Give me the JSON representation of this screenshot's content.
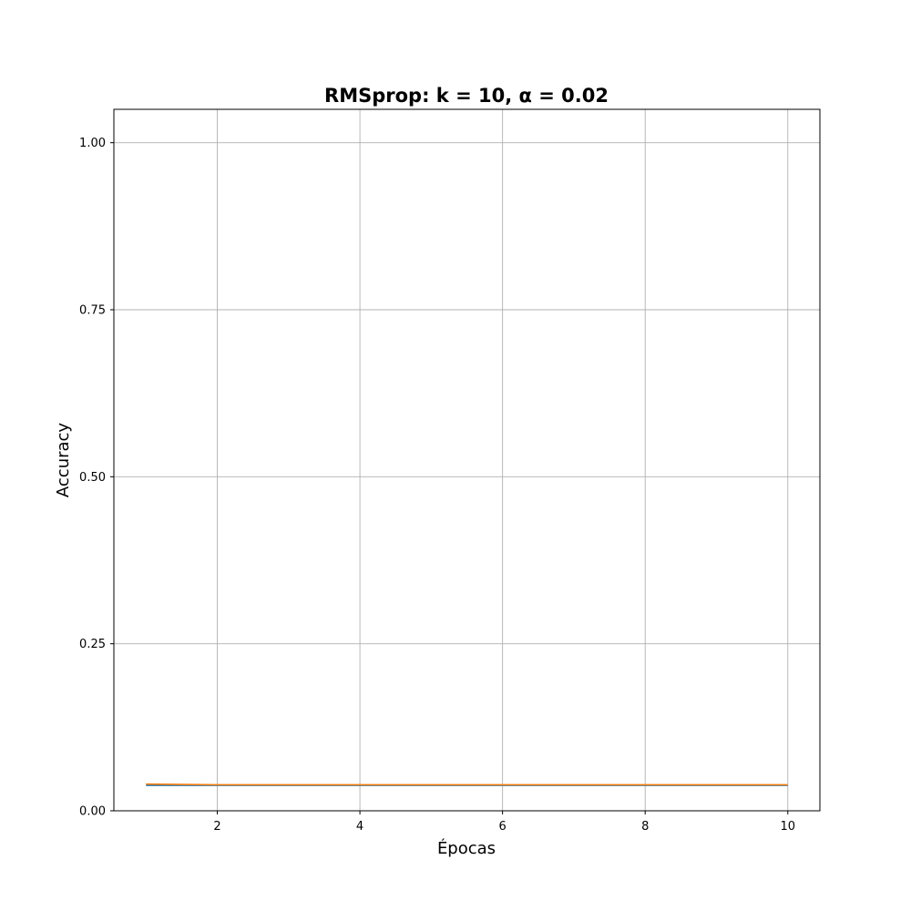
{
  "chart_data": {
    "type": "line",
    "title": "RMSprop: k = 10, α = 0.02",
    "xlabel": "Épocas",
    "ylabel": "Accuracy",
    "xlim": [
      0.55,
      10.45
    ],
    "ylim": [
      0,
      1.05
    ],
    "xticks": [
      2,
      4,
      6,
      8,
      10
    ],
    "xtick_labels": [
      "2",
      "4",
      "6",
      "8",
      "10"
    ],
    "yticks": [
      0,
      0.25,
      0.5,
      0.75,
      1.0
    ],
    "ytick_labels": [
      "0.00",
      "0.25",
      "0.50",
      "0.75",
      "1.00"
    ],
    "grid": true,
    "x": [
      1,
      2,
      3,
      4,
      5,
      6,
      7,
      8,
      9,
      10
    ],
    "series": [
      {
        "color": "#1f77b4",
        "values": [
          0.038,
          0.038,
          0.038,
          0.038,
          0.038,
          0.038,
          0.038,
          0.038,
          0.038,
          0.038
        ]
      },
      {
        "color": "#ff7f0e",
        "values": [
          0.04,
          0.039,
          0.039,
          0.039,
          0.039,
          0.039,
          0.039,
          0.039,
          0.039,
          0.039
        ]
      }
    ]
  }
}
